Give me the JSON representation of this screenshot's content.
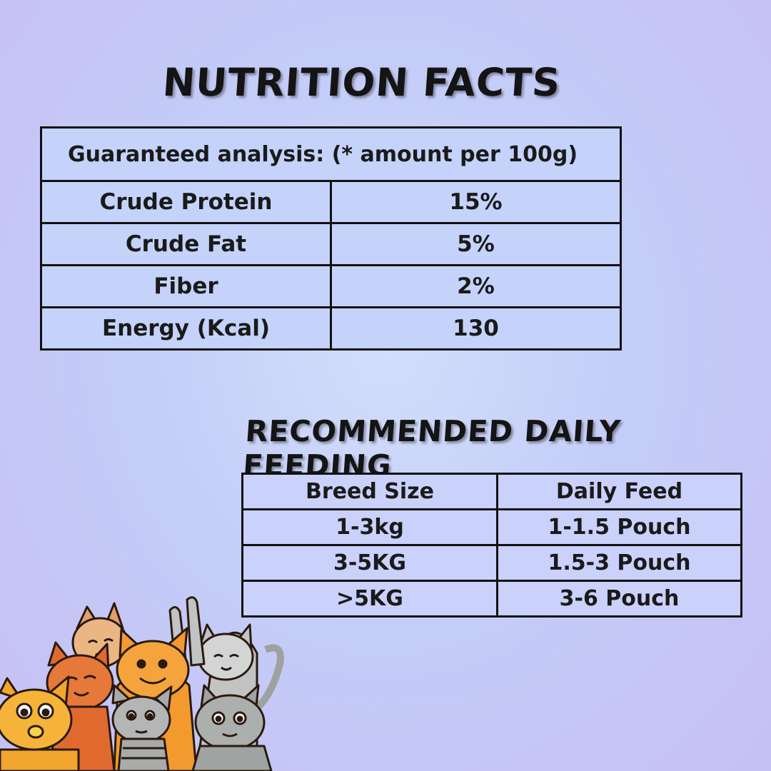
{
  "nutrition": {
    "title": "NUTRITION FACTS",
    "header": "Guaranteed analysis: (* amount per 100g)",
    "rows": [
      {
        "label": "Crude Protein",
        "value": "15%"
      },
      {
        "label": "Crude Fat",
        "value": "5%"
      },
      {
        "label": "Fiber",
        "value": "2%"
      },
      {
        "label": "Energy (Kcal)",
        "value": "130"
      }
    ]
  },
  "feeding": {
    "title": "RECOMMENDED DAILY FEEDING",
    "columns": [
      "Breed Size",
      "Daily Feed"
    ],
    "rows": [
      {
        "size": "1-3kg",
        "feed": "1-1.5 Pouch"
      },
      {
        "size": "3-5KG",
        "feed": "1.5-3 Pouch"
      },
      {
        "size": ">5KG",
        "feed": "3-6 Pouch"
      }
    ]
  },
  "colors": {
    "background": "#c8cdf8",
    "table_fill": "#c5d3fb",
    "border": "#111111",
    "orange_cat": "#f29a2e",
    "gray_cat": "#a9abab"
  },
  "illustration": "cartoon-cats-group"
}
